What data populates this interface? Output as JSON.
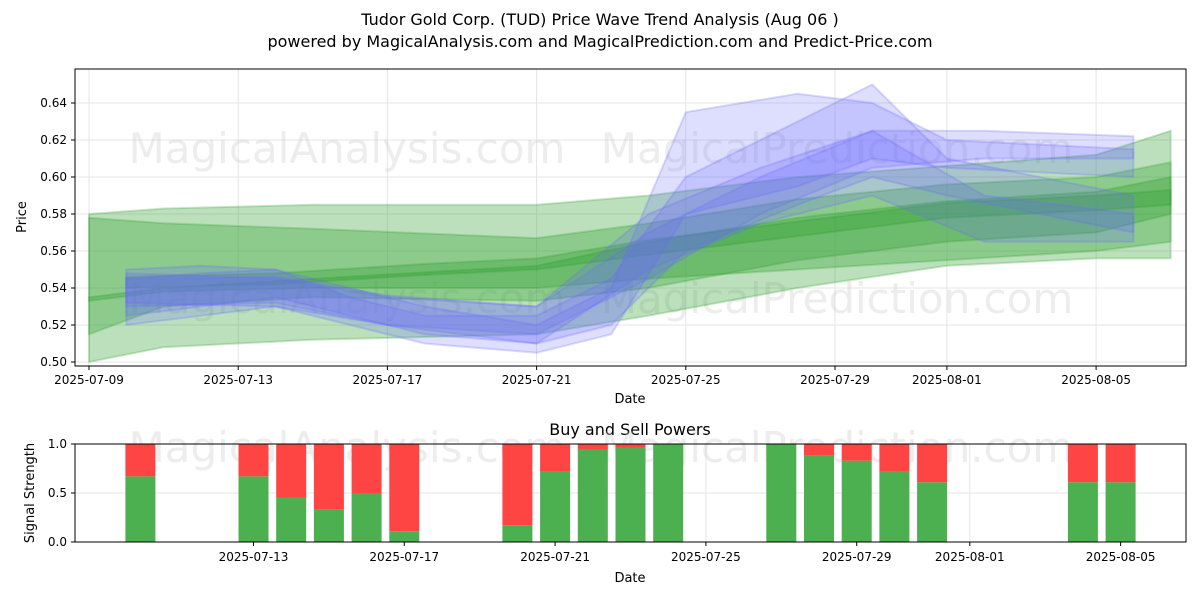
{
  "header": {
    "title": "Tudor Gold Corp. (TUD) Price Wave Trend Analysis (Aug 06 )",
    "subtitle": "powered by MagicalAnalysis.com and MagicalPrediction.com and Predict-Price.com"
  },
  "watermarks": [
    "MagicalAnalysis.com",
    "MagicalPrediction.com",
    "MagicalAnalysis.com",
    "MagicalPrediction.com",
    "MagicalAnalysis.com",
    "MagicalPrediction.com"
  ],
  "colors": {
    "green": "#2ca02c",
    "blue": "#6a6aff",
    "buy": "#4caf50",
    "sell": "#ff4444"
  },
  "chart_data": [
    {
      "type": "area",
      "title": "",
      "xlabel": "Date",
      "ylabel": "Price",
      "ylim": [
        0.5,
        0.65
      ],
      "yticks": [
        "0.50",
        "0.52",
        "0.54",
        "0.56",
        "0.58",
        "0.60",
        "0.62",
        "0.64"
      ],
      "xticks": [
        "2025-07-09",
        "2025-07-13",
        "2025-07-17",
        "2025-07-21",
        "2025-07-25",
        "2025-07-29",
        "2025-08-01",
        "2025-08-05"
      ],
      "x_start": "2025-07-09",
      "grid": true,
      "series": [
        {
          "kind": "green",
          "x": [
            "2025-07-09",
            "2025-07-11",
            "2025-07-15",
            "2025-07-21",
            "2025-07-24",
            "2025-07-28",
            "2025-08-01",
            "2025-08-05",
            "2025-08-07"
          ],
          "low": [
            0.515,
            0.53,
            0.535,
            0.533,
            0.54,
            0.555,
            0.565,
            0.57,
            0.58
          ],
          "high": [
            0.578,
            0.575,
            0.572,
            0.567,
            0.575,
            0.588,
            0.596,
            0.6,
            0.608
          ]
        },
        {
          "kind": "green",
          "x": [
            "2025-07-09",
            "2025-07-11",
            "2025-07-15",
            "2025-07-21",
            "2025-07-24",
            "2025-07-28",
            "2025-08-01",
            "2025-08-05",
            "2025-08-07"
          ],
          "low": [
            0.533,
            0.538,
            0.54,
            0.54,
            0.545,
            0.55,
            0.555,
            0.56,
            0.565
          ],
          "high": [
            0.58,
            0.583,
            0.585,
            0.585,
            0.59,
            0.6,
            0.606,
            0.612,
            0.625
          ]
        },
        {
          "kind": "green",
          "x": [
            "2025-07-09",
            "2025-07-11",
            "2025-07-15",
            "2025-07-21",
            "2025-07-24",
            "2025-07-28",
            "2025-08-01",
            "2025-08-05",
            "2025-08-07"
          ],
          "low": [
            0.5,
            0.508,
            0.512,
            0.515,
            0.525,
            0.54,
            0.552,
            0.556,
            0.556
          ],
          "high": [
            0.535,
            0.54,
            0.545,
            0.552,
            0.565,
            0.578,
            0.587,
            0.592,
            0.6
          ]
        },
        {
          "kind": "green",
          "x": [
            "2025-07-10",
            "2025-07-14",
            "2025-07-18",
            "2025-07-21",
            "2025-07-24",
            "2025-07-28",
            "2025-08-01",
            "2025-08-05",
            "2025-08-07"
          ],
          "low": [
            0.54,
            0.542,
            0.547,
            0.55,
            0.558,
            0.568,
            0.578,
            0.582,
            0.585
          ],
          "high": [
            0.546,
            0.548,
            0.553,
            0.556,
            0.566,
            0.576,
            0.586,
            0.59,
            0.593
          ]
        },
        {
          "kind": "blue",
          "x": [
            "2025-07-10",
            "2025-07-12",
            "2025-07-14",
            "2025-07-16",
            "2025-07-18",
            "2025-07-21",
            "2025-07-23",
            "2025-07-25",
            "2025-07-28",
            "2025-07-30",
            "2025-08-01",
            "2025-08-06"
          ],
          "low": [
            0.52,
            0.525,
            0.53,
            0.52,
            0.51,
            0.505,
            0.515,
            0.58,
            0.595,
            0.61,
            0.605,
            0.6
          ],
          "high": [
            0.55,
            0.552,
            0.55,
            0.54,
            0.53,
            0.52,
            0.54,
            0.635,
            0.645,
            0.64,
            0.62,
            0.615
          ]
        },
        {
          "kind": "blue",
          "x": [
            "2025-07-10",
            "2025-07-12",
            "2025-07-14",
            "2025-07-16",
            "2025-07-18",
            "2025-07-21",
            "2025-07-23",
            "2025-07-25",
            "2025-07-28",
            "2025-07-30",
            "2025-08-01",
            "2025-08-06"
          ],
          "low": [
            0.525,
            0.53,
            0.535,
            0.525,
            0.515,
            0.51,
            0.52,
            0.56,
            0.585,
            0.6,
            0.59,
            0.57
          ],
          "high": [
            0.545,
            0.548,
            0.55,
            0.535,
            0.525,
            0.525,
            0.545,
            0.6,
            0.63,
            0.65,
            0.61,
            0.59
          ]
        },
        {
          "kind": "blue",
          "x": [
            "2025-07-10",
            "2025-07-14",
            "2025-07-17",
            "2025-07-21",
            "2025-07-24",
            "2025-07-27",
            "2025-07-30",
            "2025-08-02",
            "2025-08-06"
          ],
          "low": [
            0.532,
            0.53,
            0.52,
            0.51,
            0.55,
            0.575,
            0.59,
            0.565,
            0.565
          ],
          "high": [
            0.548,
            0.545,
            0.535,
            0.53,
            0.58,
            0.605,
            0.625,
            0.59,
            0.58
          ]
        },
        {
          "kind": "blue",
          "x": [
            "2025-07-10",
            "2025-07-14",
            "2025-07-17",
            "2025-07-21",
            "2025-07-24",
            "2025-07-27",
            "2025-07-30",
            "2025-08-02",
            "2025-08-06"
          ],
          "low": [
            0.53,
            0.532,
            0.52,
            0.515,
            0.545,
            0.58,
            0.605,
            0.61,
            0.61
          ],
          "high": [
            0.545,
            0.546,
            0.536,
            0.53,
            0.57,
            0.6,
            0.625,
            0.625,
            0.622
          ]
        }
      ]
    },
    {
      "type": "bar",
      "title": "Buy and Sell Powers",
      "xlabel": "Date",
      "ylabel": "Signal Strength",
      "ylim": [
        0,
        1
      ],
      "yticks": [
        "0.0",
        "0.5",
        "1.0"
      ],
      "xticks": [
        "2025-07-13",
        "2025-07-17",
        "2025-07-21",
        "2025-07-25",
        "2025-07-29",
        "2025-08-01",
        "2025-08-05"
      ],
      "grid": true,
      "series": [
        {
          "name": "buy",
          "dates": [
            "2025-07-10",
            "2025-07-13",
            "2025-07-14",
            "2025-07-15",
            "2025-07-16",
            "2025-07-17",
            "2025-07-20",
            "2025-07-21",
            "2025-07-22",
            "2025-07-23",
            "2025-07-24",
            "2025-07-27",
            "2025-07-28",
            "2025-07-29",
            "2025-07-30",
            "2025-07-31",
            "2025-08-04",
            "2025-08-05"
          ],
          "values": [
            0.67,
            0.67,
            0.45,
            0.33,
            0.5,
            0.11,
            0.17,
            0.72,
            0.94,
            0.96,
            1.0,
            1.0,
            0.88,
            0.83,
            0.72,
            0.61,
            0.61,
            0.61
          ]
        },
        {
          "name": "sell",
          "dates": [
            "2025-07-10",
            "2025-07-13",
            "2025-07-14",
            "2025-07-15",
            "2025-07-16",
            "2025-07-17",
            "2025-07-20",
            "2025-07-21",
            "2025-07-22",
            "2025-07-23",
            "2025-07-24",
            "2025-07-27",
            "2025-07-28",
            "2025-07-29",
            "2025-07-30",
            "2025-07-31",
            "2025-08-04",
            "2025-08-05"
          ],
          "values": [
            0.33,
            0.33,
            0.55,
            0.67,
            0.5,
            0.89,
            0.83,
            0.28,
            0.06,
            0.04,
            0.0,
            0.0,
            0.12,
            0.17,
            0.28,
            0.39,
            0.39,
            0.39
          ]
        }
      ]
    }
  ]
}
